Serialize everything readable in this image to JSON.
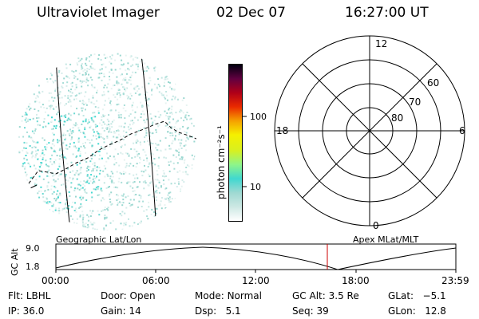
{
  "header": {
    "instrument": "Ultraviolet Imager",
    "date": "02 Dec 07",
    "time": "16:27:00 UT"
  },
  "colorbar": {
    "ticks": [
      "100",
      "10"
    ],
    "unit_label": "photon cm⁻²s⁻¹",
    "colors": [
      "#ffffff",
      "#cde8e4",
      "#9fd9d2",
      "#40d8d0",
      "#8ef58a",
      "#d8f020",
      "#f5f000",
      "#f5a000",
      "#ea2a00",
      "#b00018",
      "#600040",
      "#000010"
    ]
  },
  "polar_plot": {
    "mlt_labels": {
      "top": "12",
      "bottom": "0",
      "left": "18",
      "right": "6"
    },
    "lat_labels": [
      "60",
      "70",
      "80"
    ]
  },
  "orbit_plot": {
    "left_title": "Geographic Lat/Lon",
    "right_title": "Apex MLat/MLT",
    "y_axis_label": "GC Alt",
    "y_ticks": [
      "9.0",
      "1.8"
    ],
    "x_ticks": [
      "00:00",
      "06:00",
      "12:00",
      "18:00",
      "23:59"
    ],
    "marker_color": "#cc0000"
  },
  "status": {
    "flt_label": "Flt:",
    "flt_value": "LBHL",
    "ip_label": "IP:",
    "ip_value": "36.0",
    "door_label": "Door:",
    "door_value": "Open",
    "gain_label": "Gain:",
    "gain_value": "14",
    "mode_label": "Mode:",
    "mode_value": "Normal",
    "dsp_label": "Dsp:",
    "dsp_value": "5.1",
    "gcalt_label": "GC Alt:",
    "gcalt_value": "3.5 Re",
    "seq_label": "Seq:",
    "seq_value": "39",
    "glat_label": "GLat:",
    "glat_value": "−5.1",
    "glon_label": "GLon:",
    "glon_value": "12.8"
  }
}
